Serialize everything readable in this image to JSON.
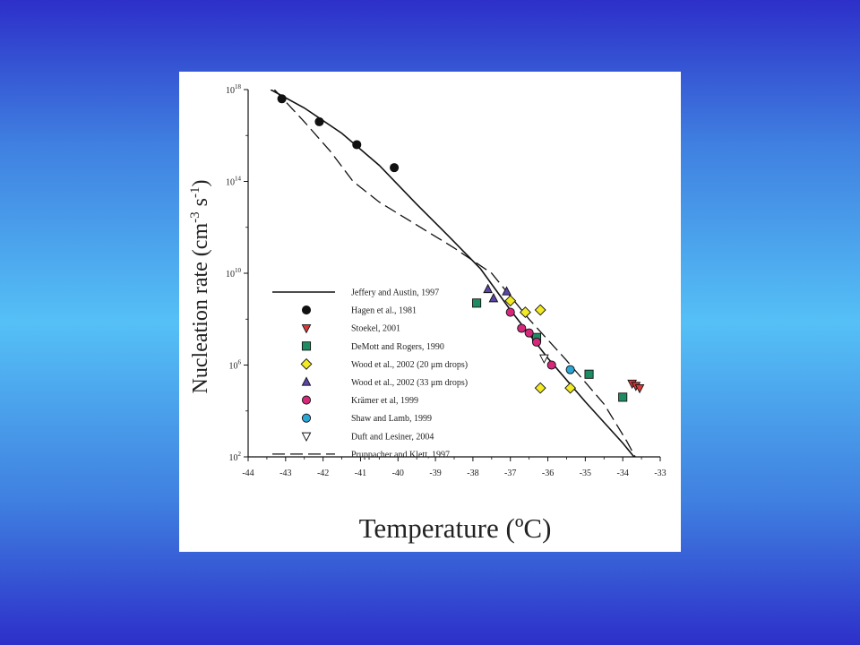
{
  "colors": {
    "slide_background": "#3f8fe8",
    "panel": "#ffffff",
    "ink": "#111111"
  },
  "chart_data": {
    "type": "scatter",
    "xlabel": "Temperature (ºC)",
    "ylabel": "Nucleation rate (cm",
    "ylabel_exp1": "-3",
    "ylabel_mid": " s",
    "ylabel_exp2": "-1",
    "ylabel_end": ")",
    "xlim": [
      -44,
      -33
    ],
    "ylim_log10": [
      2,
      18
    ],
    "y_scale": "log",
    "x_ticks": [
      -44,
      -43,
      -42,
      -41,
      -40,
      -39,
      -38,
      -37,
      -36,
      -35,
      -34,
      -33
    ],
    "y_ticks": [
      {
        "value": 2,
        "base": "10",
        "exp": "2"
      },
      {
        "value": 6,
        "base": "10",
        "exp": "6"
      },
      {
        "value": 10,
        "base": "10",
        "exp": "10"
      },
      {
        "value": 14,
        "base": "10",
        "exp": "14"
      },
      {
        "value": 18,
        "base": "10",
        "exp": "18"
      }
    ],
    "grid": false,
    "legend_position": "lower-left",
    "series": [
      {
        "name": "Jeffery and Austin, 1997",
        "kind": "line",
        "dash": "solid",
        "points": [
          [
            -43.4,
            18
          ],
          [
            -42.5,
            17.2
          ],
          [
            -41.5,
            16.1
          ],
          [
            -40.5,
            14.7
          ],
          [
            -39.5,
            13.0
          ],
          [
            -38.7,
            11.7
          ],
          [
            -37.8,
            10.2
          ],
          [
            -37.0,
            8.4
          ],
          [
            -36.0,
            6.3
          ],
          [
            -35.0,
            4.4
          ],
          [
            -34.0,
            2.6
          ],
          [
            -33.6,
            1.8
          ]
        ]
      },
      {
        "name": "Hagen et al., 1981",
        "kind": "marker",
        "marker": "circle",
        "color": "#111111",
        "points": [
          [
            -43.1,
            17.6
          ],
          [
            -42.1,
            16.6
          ],
          [
            -41.1,
            15.6
          ],
          [
            -40.1,
            14.6
          ]
        ]
      },
      {
        "name": "Stoekel, 2001",
        "kind": "marker",
        "marker": "triangle-down",
        "color": "#d83a3a",
        "points": [
          [
            -33.75,
            5.2
          ],
          [
            -33.65,
            5.1
          ],
          [
            -33.55,
            5.0
          ]
        ]
      },
      {
        "name": "DeMott and Rogers, 1990",
        "kind": "marker",
        "marker": "square",
        "color": "#1e8c62",
        "points": [
          [
            -37.9,
            8.7
          ],
          [
            -36.3,
            7.2
          ],
          [
            -34.9,
            5.6
          ],
          [
            -34.0,
            4.6
          ]
        ]
      },
      {
        "name": "Wood et al., 2002 (20 μm drops)",
        "kind": "marker",
        "marker": "diamond",
        "color": "#f2ea24",
        "points": [
          [
            -37.0,
            8.8
          ],
          [
            -36.6,
            8.3
          ],
          [
            -36.2,
            8.4
          ],
          [
            -36.2,
            5.0
          ],
          [
            -35.4,
            5.0
          ]
        ]
      },
      {
        "name": "Wood et al., 2002 (33 μm drops)",
        "kind": "marker",
        "marker": "triangle-up",
        "color": "#5a46a8",
        "points": [
          [
            -37.6,
            9.3
          ],
          [
            -37.45,
            8.9
          ],
          [
            -37.1,
            9.2
          ]
        ]
      },
      {
        "name": "Krämer et al, 1999",
        "kind": "marker",
        "marker": "circle",
        "color": "#d6287a",
        "points": [
          [
            -37.0,
            8.3
          ],
          [
            -36.7,
            7.6
          ],
          [
            -36.5,
            7.4
          ],
          [
            -36.3,
            7.0
          ],
          [
            -35.9,
            6.0
          ]
        ]
      },
      {
        "name": "Shaw and Lamb, 1999",
        "kind": "marker",
        "marker": "circle",
        "color": "#2aa7d6",
        "points": [
          [
            -35.4,
            5.8
          ]
        ]
      },
      {
        "name": "Duft and Lesiner, 2004",
        "kind": "marker",
        "marker": "triangle-down-open",
        "color": "#ffffff",
        "points": [
          [
            -36.1,
            6.3
          ]
        ]
      },
      {
        "name": "Pruppacher and Klett, 1997",
        "kind": "line",
        "dash": "long-dash",
        "points": [
          [
            -43.3,
            18
          ],
          [
            -42.5,
            16.6
          ],
          [
            -41.8,
            15.3
          ],
          [
            -41.2,
            14.0
          ],
          [
            -40.5,
            13.1
          ],
          [
            -39.5,
            12.1
          ],
          [
            -38.5,
            11.1
          ],
          [
            -37.5,
            10.0
          ],
          [
            -36.5,
            8.0
          ],
          [
            -35.5,
            6.2
          ],
          [
            -34.5,
            4.3
          ],
          [
            -33.9,
            2.7
          ],
          [
            -33.6,
            1.8
          ]
        ]
      }
    ]
  }
}
